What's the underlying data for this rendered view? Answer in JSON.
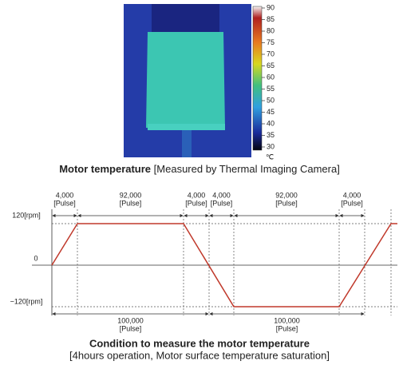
{
  "thermal": {
    "scale_ticks": [
      "90",
      "85",
      "80",
      "75",
      "70",
      "65",
      "60",
      "55",
      "50",
      "45",
      "40",
      "35",
      "30"
    ],
    "unit": "℃",
    "caption_bold": "Motor temperature",
    "caption_rest": "[Measured by Thermal Imaging Camera]"
  },
  "profile": {
    "y_labels": [
      "120[rpm]",
      "0",
      "−120[rpm]"
    ],
    "top_spans": [
      {
        "value": "4,000",
        "unit": "[Pulse]"
      },
      {
        "value": "92,000",
        "unit": "[Pulse]"
      },
      {
        "value": "4,000",
        "unit": "[Pulse]"
      },
      {
        "value": "4,000",
        "unit": "[Pulse]"
      },
      {
        "value": "92,000",
        "unit": "[Pulse]"
      },
      {
        "value": "4,000",
        "unit": "[Pulse]"
      }
    ],
    "bottom_spans": [
      {
        "value": "100,000",
        "unit": "[Pulse]"
      },
      {
        "value": "100,000",
        "unit": "[Pulse]"
      }
    ],
    "title": "Condition to measure the motor temperature",
    "subtitle": "[4hours operation, Motor surface temperature saturation]"
  }
}
